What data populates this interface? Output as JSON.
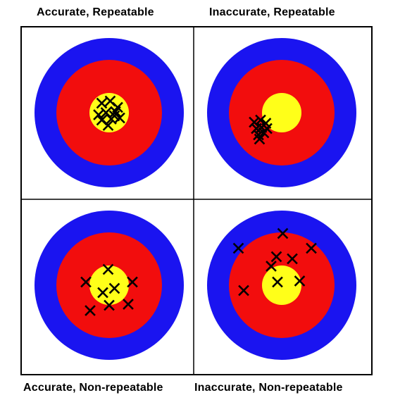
{
  "quadrants": [
    {
      "id": "top-left",
      "label": "Accurate, Repeatable",
      "marks": [
        [
          -0.14,
          -0.18
        ],
        [
          0.02,
          -0.22
        ],
        [
          0.16,
          -0.1
        ],
        [
          -0.2,
          0.04
        ],
        [
          -0.06,
          0.0
        ],
        [
          0.1,
          0.06
        ],
        [
          -0.14,
          0.14
        ],
        [
          0.04,
          0.12
        ],
        [
          0.2,
          0.1
        ],
        [
          -0.02,
          0.24
        ],
        [
          0.12,
          -0.02
        ]
      ]
    },
    {
      "id": "top-right",
      "label": "Inaccurate, Repeatable",
      "marks": [
        [
          -0.52,
          0.18
        ],
        [
          -0.4,
          0.14
        ],
        [
          -0.3,
          0.2
        ],
        [
          -0.48,
          0.3
        ],
        [
          -0.38,
          0.28
        ],
        [
          -0.28,
          0.3
        ],
        [
          -0.44,
          0.42
        ],
        [
          -0.34,
          0.38
        ],
        [
          -0.42,
          0.5
        ]
      ]
    },
    {
      "id": "bottom-left",
      "label": "Accurate, Non-repeatable",
      "marks": [
        [
          -0.02,
          -0.3
        ],
        [
          -0.44,
          -0.06
        ],
        [
          0.44,
          -0.06
        ],
        [
          0.1,
          0.06
        ],
        [
          -0.12,
          0.14
        ],
        [
          0.0,
          0.38
        ],
        [
          0.36,
          0.36
        ],
        [
          -0.36,
          0.48
        ]
      ]
    },
    {
      "id": "bottom-right",
      "label": "Inaccurate, Non-repeatable",
      "marks": [
        [
          0.02,
          -0.98
        ],
        [
          -0.82,
          -0.7
        ],
        [
          0.56,
          -0.7
        ],
        [
          -0.1,
          -0.54
        ],
        [
          -0.2,
          -0.36
        ],
        [
          0.2,
          -0.5
        ],
        [
          -0.08,
          -0.06
        ],
        [
          0.34,
          -0.08
        ],
        [
          -0.72,
          0.1
        ]
      ]
    }
  ],
  "colors": {
    "outer_ring": "#1a14f0",
    "middle_ring": "#f20d0d",
    "bullseye": "#ffff19",
    "mark": "#000000",
    "border": "#000000"
  }
}
